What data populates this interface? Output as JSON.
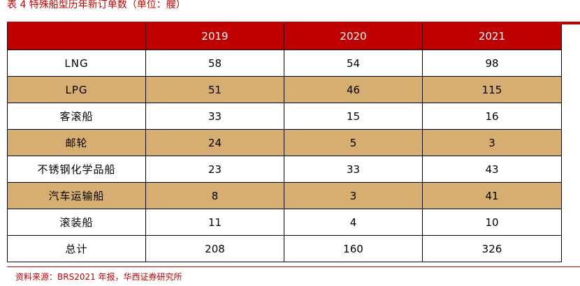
{
  "caption": "表 4 特殊船型历年新订单数（单位：艘）",
  "table": {
    "headers": [
      "",
      "2019",
      "2020",
      "2021"
    ],
    "rows": [
      {
        "label": "LNG",
        "values": [
          "58",
          "54",
          "98"
        ],
        "shaded": false
      },
      {
        "label": "LPG",
        "values": [
          "51",
          "46",
          "115"
        ],
        "shaded": true
      },
      {
        "label": "客滚船",
        "values": [
          "33",
          "15",
          "16"
        ],
        "shaded": false
      },
      {
        "label": "邮轮",
        "values": [
          "24",
          "5",
          "3"
        ],
        "shaded": true
      },
      {
        "label": "不锈钢化学品船",
        "values": [
          "23",
          "33",
          "43"
        ],
        "shaded": false
      },
      {
        "label": "汽车运输船",
        "values": [
          "8",
          "3",
          "41"
        ],
        "shaded": true
      },
      {
        "label": "滚装船",
        "values": [
          "11",
          "4",
          "10"
        ],
        "shaded": false
      },
      {
        "label": "总计",
        "values": [
          "208",
          "160",
          "326"
        ],
        "shaded": false
      }
    ]
  },
  "source": "资料来源：BRS2021 年报，华西证券研究所",
  "colors": {
    "accent": "#c00000",
    "shade": "#d7ae72"
  }
}
